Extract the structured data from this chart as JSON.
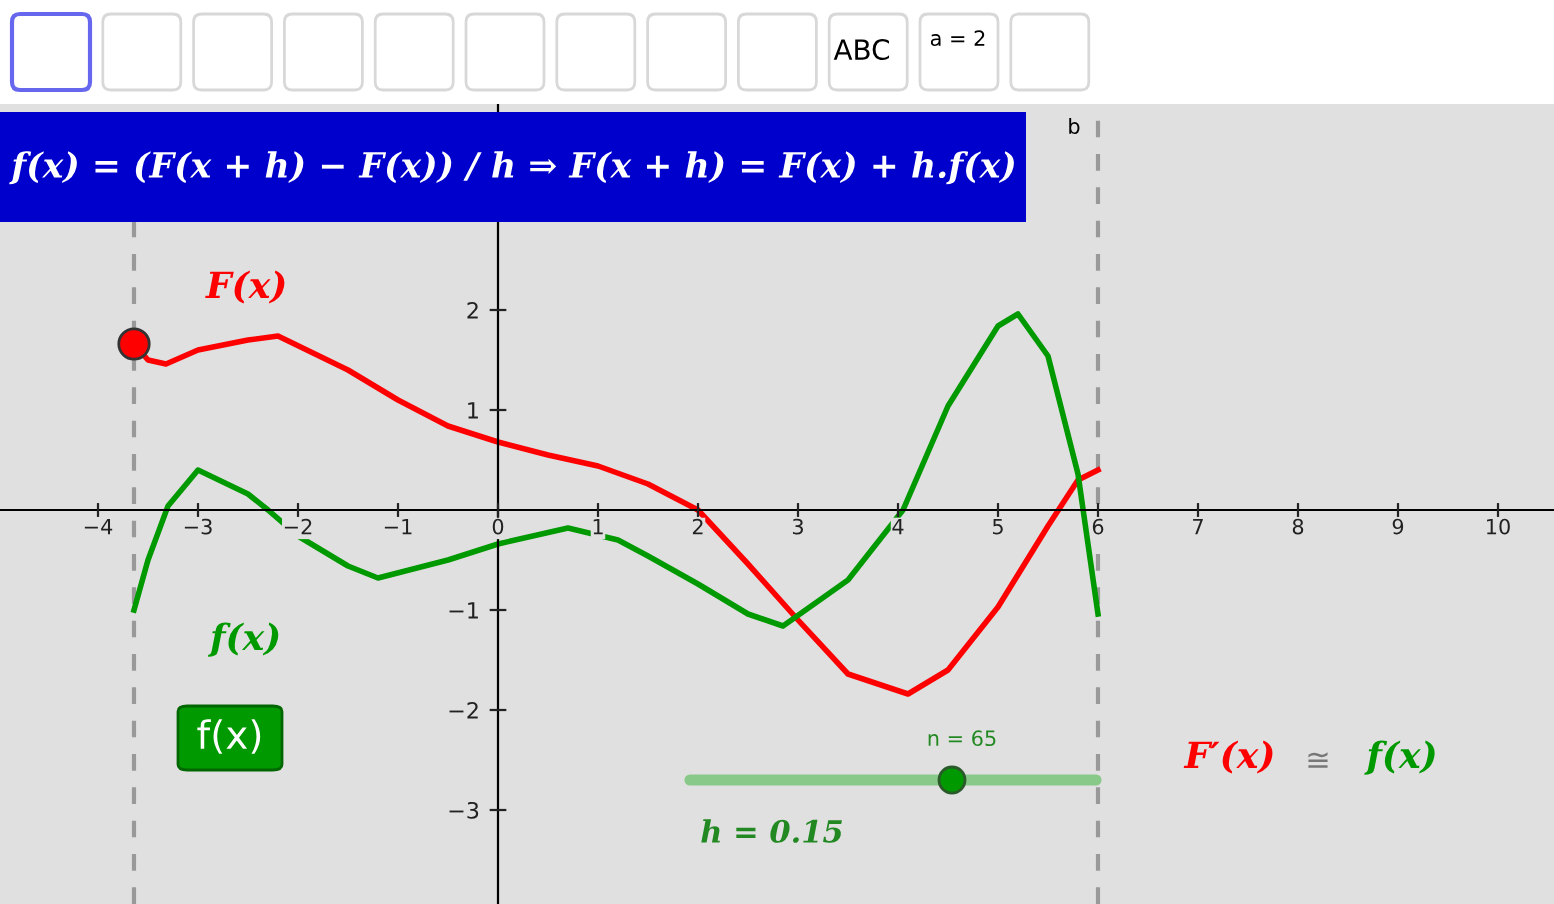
{
  "chart_data": {
    "type": "line",
    "xlim": [
      -4.98,
      10.56
    ],
    "ylim": [
      -3.94,
      4.06
    ],
    "xticks": [
      -4,
      -3,
      -2,
      -1,
      0,
      1,
      2,
      3,
      4,
      5,
      6,
      7,
      8,
      9,
      10
    ],
    "yticks": [
      -3,
      -2,
      -1,
      1,
      2
    ],
    "series": [
      {
        "name": "F(x)",
        "color": "#ff0000",
        "x": [
          -3.64,
          -3.5,
          -3.32,
          -3.0,
          -2.5,
          -2.2,
          -1.5,
          -1.0,
          -0.5,
          0,
          0.5,
          1,
          1.5,
          2,
          2.5,
          3,
          3.5,
          4.1,
          4.5,
          5,
          5.5,
          5.8,
          6
        ],
        "values": [
          1.66,
          1.5,
          1.46,
          1.6,
          1.7,
          1.74,
          1.4,
          1.1,
          0.84,
          0.68,
          0.55,
          0.44,
          0.26,
          0,
          -0.54,
          -1.1,
          -1.64,
          -1.84,
          -1.6,
          -0.97,
          -0.16,
          0.3,
          0.4
        ]
      },
      {
        "name": "f(x)",
        "color": "#009900",
        "x": [
          -3.64,
          -3.5,
          -3.3,
          -3.0,
          -2.5,
          -2.3,
          -2.0,
          -1.5,
          -1.2,
          -0.5,
          0,
          0.7,
          1.2,
          1.5,
          2,
          2.5,
          2.85,
          3.5,
          4.05,
          4.5,
          5,
          5.2,
          5.5,
          5.8,
          6
        ],
        "values": [
          -1.0,
          -0.5,
          0.04,
          0.4,
          0.16,
          0,
          -0.26,
          -0.56,
          -0.68,
          -0.5,
          -0.34,
          -0.18,
          -0.3,
          -0.46,
          -0.74,
          -1.04,
          -1.16,
          -0.7,
          0,
          1.04,
          1.84,
          1.96,
          1.54,
          0.36,
          -1.04
        ]
      },
      {
        "type": "scatter",
        "color": "#ff0000",
        "marker": "circle",
        "x": [
          -3.64
        ],
        "values": [
          1.66
        ]
      }
    ],
    "ref_lines": [
      {
        "axis": "x",
        "value": -3.64,
        "color": "#999999",
        "line_style": "dashed"
      },
      {
        "axis": "x",
        "value": 6,
        "color": "#999999",
        "line_style": "dashed"
      }
    ],
    "annotations": [
      "f(x) = (F(x + h) − F(x)) / h ⇒ F(x + h) = F(x) + h.f(x)",
      "F′(x)",
      "≅",
      "f(x)",
      "n = 65",
      "h = 0.15",
      "f(x)",
      "b",
      "ABC",
      "a = 2"
    ]
  }
}
